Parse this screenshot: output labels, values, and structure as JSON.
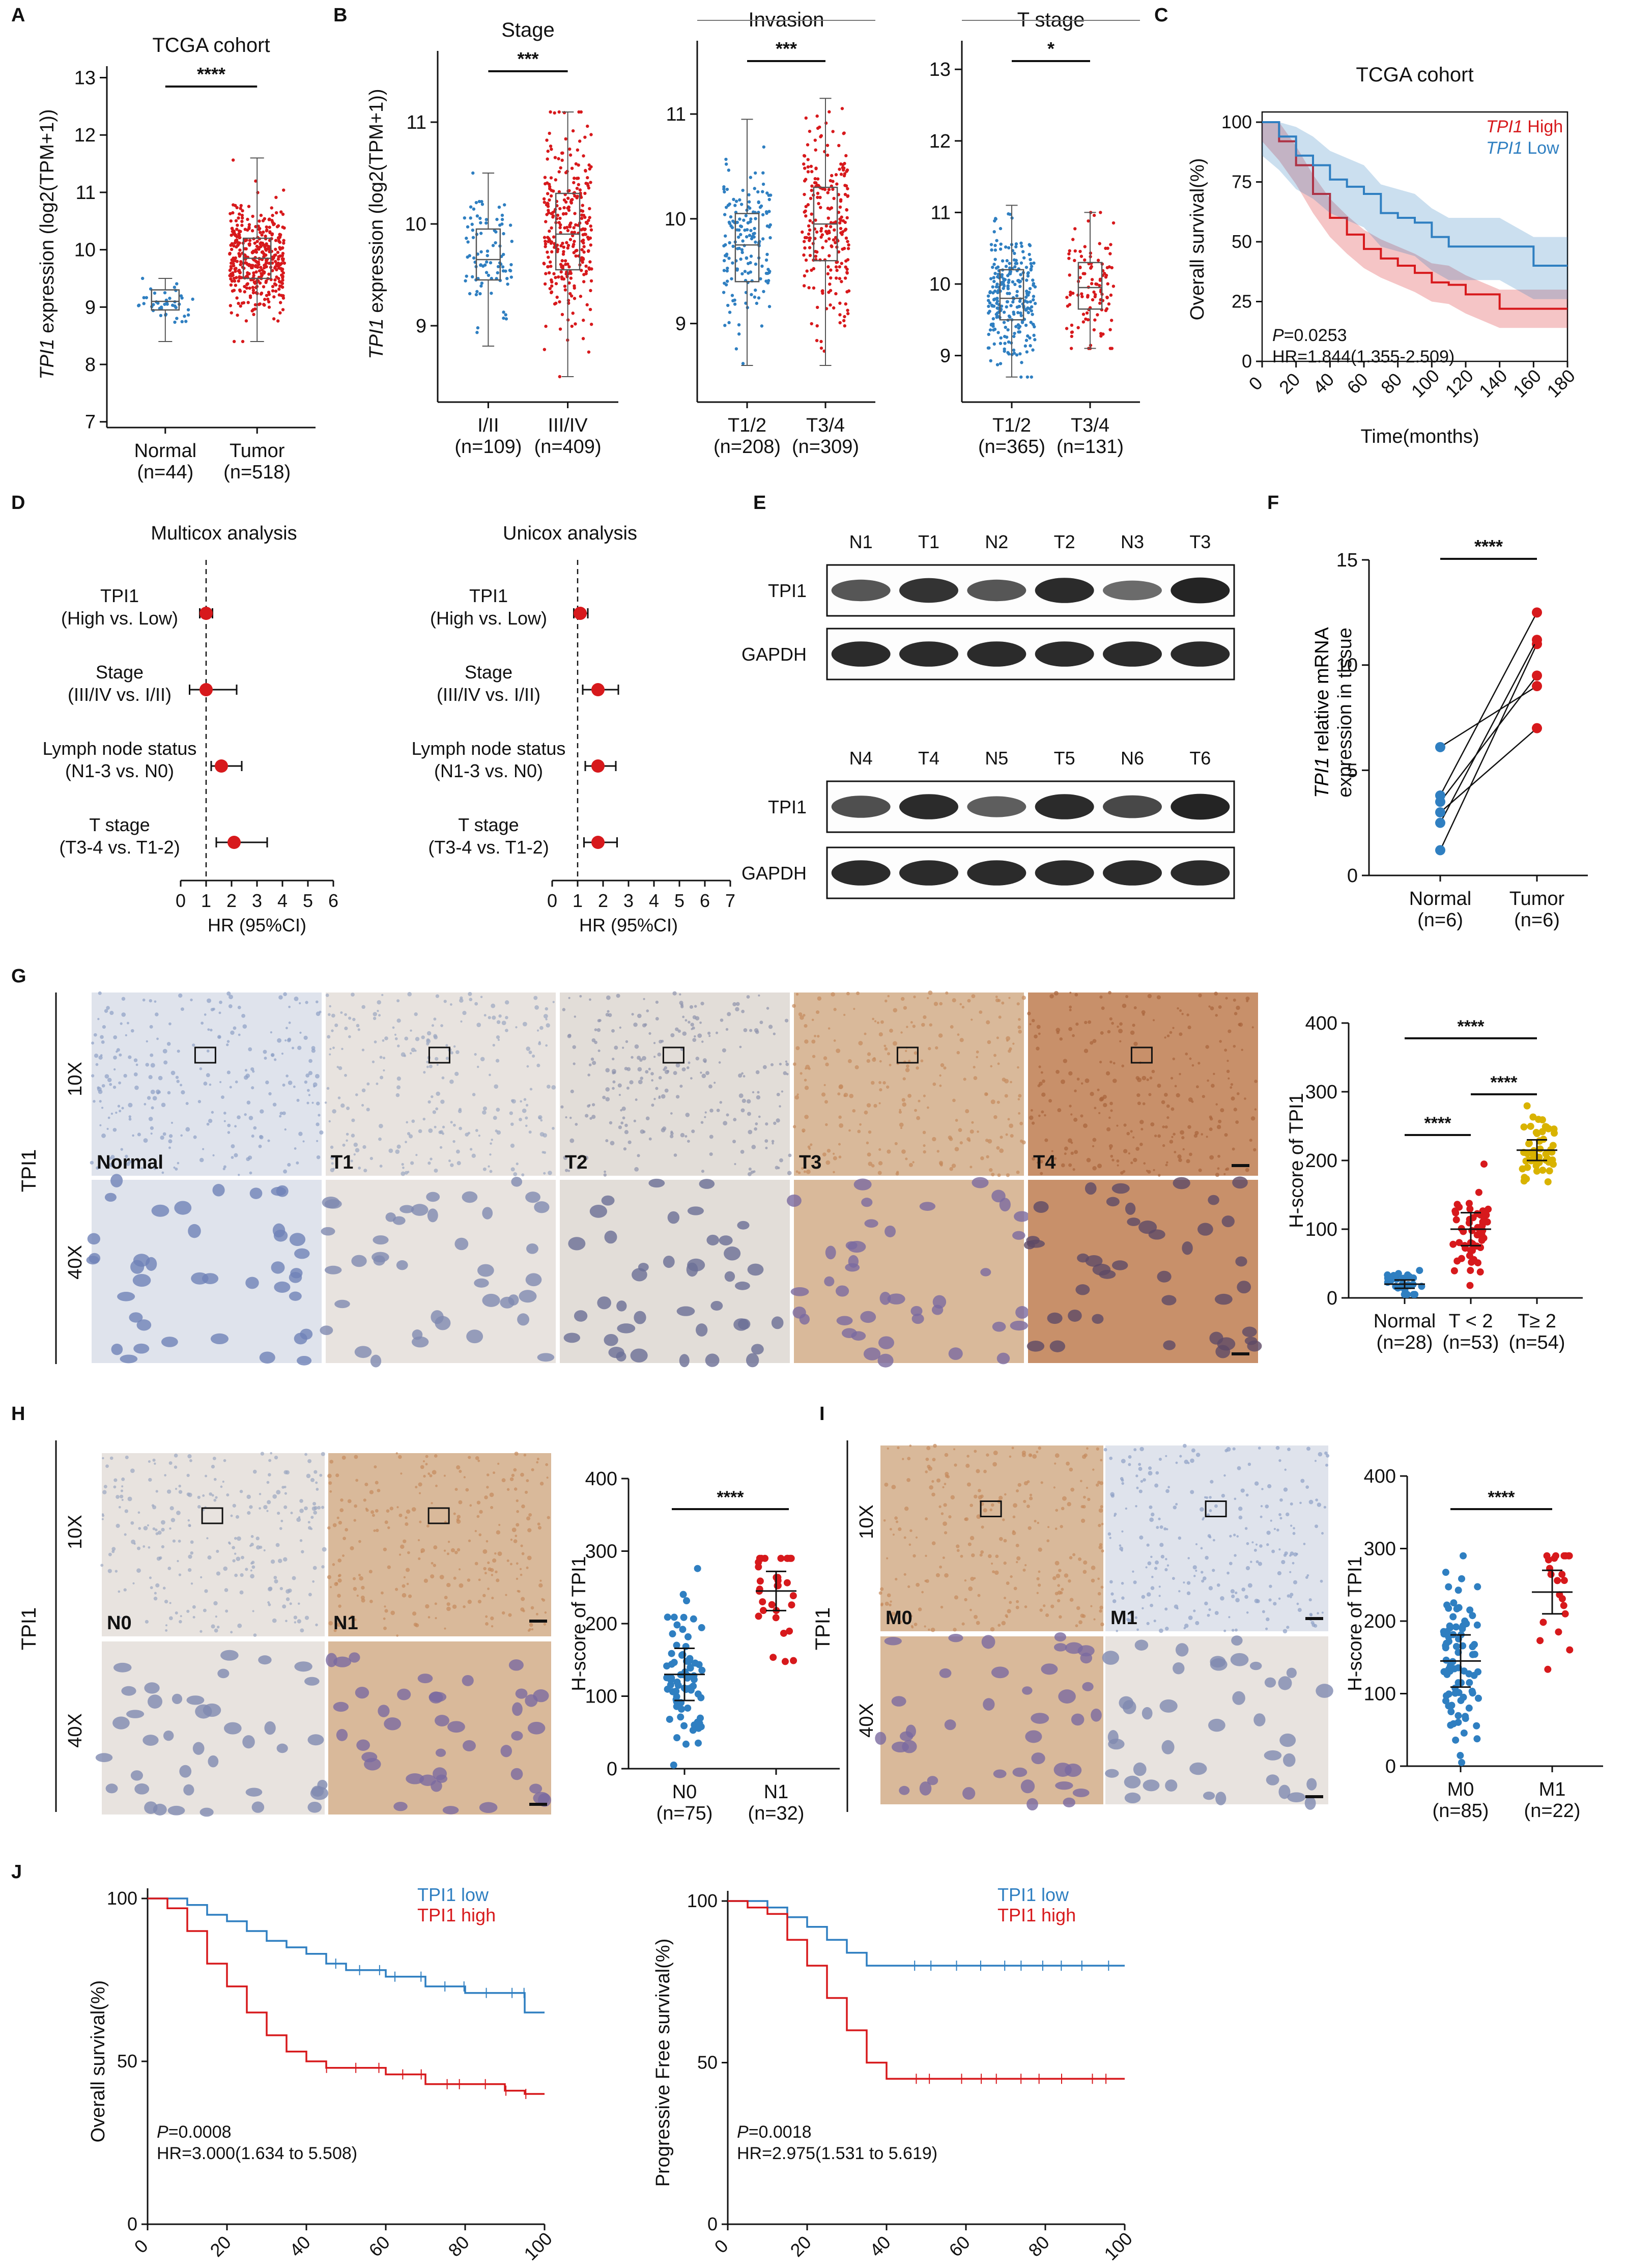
{
  "colors": {
    "red": "#d7191c",
    "blue": "#2f7fc1",
    "yellow": "#d9b300",
    "axis": "#111111"
  },
  "panels": {
    "A": {
      "letter": "A",
      "title": "TCGA cohort",
      "ylabel_italic": "TPI1",
      "ylabel_rest": " expression (log2(TPM+1))",
      "ticks": [
        "7",
        "8",
        "9",
        "10",
        "11",
        "12",
        "13"
      ],
      "groups": [
        {
          "name": "Normal",
          "n": "(n=44)"
        },
        {
          "name": "Tumor",
          "n": "(n=518)"
        }
      ],
      "sig": "****"
    },
    "B": {
      "letter": "B",
      "ylabel_italic": "TPI1",
      "ylabel_rest": " expression (log2(TPM+1))",
      "subplots": [
        {
          "title": "Stage",
          "groups": [
            {
              "name": "I/II",
              "n": "(n=109)"
            },
            {
              "name": "III/IV",
              "n": "(n=409)"
            }
          ],
          "sig": "***",
          "ticks": [
            "9",
            "10",
            "11"
          ]
        },
        {
          "title": "Invasion",
          "groups": [
            {
              "name": "T1/2",
              "n": "(n=208)"
            },
            {
              "name": "T3/4",
              "n": "(n=309)"
            }
          ],
          "sig": "***",
          "ticks": [
            "9",
            "10",
            "11"
          ]
        },
        {
          "title": "T stage",
          "groups": [
            {
              "name": "T1/2",
              "n": "(n=365)"
            },
            {
              "name": "T3/4",
              "n": "(n=131)"
            }
          ],
          "sig": "*",
          "ticks": [
            "9",
            "10",
            "11",
            "12",
            "13"
          ]
        }
      ]
    },
    "C": {
      "letter": "C",
      "title": "TCGA cohort",
      "ylabel": "Overall survival(%)",
      "xlabel": "Time(months)",
      "legend": [
        {
          "italic": "TPI1",
          "rest": " High",
          "color": "#d7191c"
        },
        {
          "italic": "TPI1",
          "rest": " Low",
          "color": "#2f7fc1"
        }
      ],
      "p_italic": "P",
      "p_rest": "=0.0253",
      "hr": "HR=1.844(1.355-2.509)",
      "xticks": [
        "0",
        "20",
        "40",
        "60",
        "80",
        "100",
        "120",
        "140",
        "160",
        "180"
      ],
      "yticks": [
        "0",
        "25",
        "50",
        "75",
        "100"
      ]
    },
    "D": {
      "letter": "D",
      "plots": [
        {
          "title": "Multicox analysis",
          "xticks": [
            "0",
            "1",
            "2",
            "3",
            "4",
            "5",
            "6"
          ],
          "hr": [
            1.0,
            1.0,
            1.6,
            2.1
          ],
          "lo": [
            0.75,
            0.35,
            1.2,
            1.4
          ],
          "hi": [
            1.25,
            2.2,
            2.4,
            3.4
          ]
        },
        {
          "title": "Unicox analysis",
          "xticks": [
            "0",
            "1",
            "2",
            "3",
            "4",
            "5",
            "6",
            "7"
          ],
          "hr": [
            1.1,
            1.8,
            1.8,
            1.8
          ],
          "lo": [
            0.85,
            1.2,
            1.3,
            1.25
          ],
          "hi": [
            1.4,
            2.6,
            2.5,
            2.55
          ]
        }
      ],
      "rows": [
        {
          "l1": "TPI1",
          "l2": "(High vs. Low)"
        },
        {
          "l1": "Stage",
          "l2": "(III/IV vs. I/II)"
        },
        {
          "l1": "Lymph node status",
          "l2": "(N1-3 vs. N0)"
        },
        {
          "l1": "T stage",
          "l2": "(T3-4 vs. T1-2)"
        }
      ],
      "xlabel": "HR (95%CI)"
    },
    "E": {
      "letter": "E",
      "blot1": {
        "heads": [
          "N1",
          "T1",
          "N2",
          "T2",
          "N3",
          "T3"
        ],
        "rows": [
          "TPI1",
          "GAPDH"
        ]
      },
      "blot2": {
        "heads": [
          "N4",
          "T4",
          "N5",
          "T5",
          "N6",
          "T6"
        ],
        "rows": [
          "TPI1",
          "GAPDH"
        ]
      }
    },
    "F": {
      "letter": "F",
      "ylabel_italic": "TPI1",
      "ylabel_rest": " relative mRNA",
      "ylabel2": "expression in tissue",
      "ticks": [
        "0",
        "5",
        "10",
        "15"
      ],
      "groups": [
        {
          "name": "Normal",
          "n": "(n=6)"
        },
        {
          "name": "Tumor",
          "n": "(n=6)"
        }
      ],
      "sig": "****"
    },
    "G": {
      "letter": "G",
      "side": "TPI1",
      "mag1": "10X",
      "mag2": "40X",
      "tiles": [
        "Normal",
        "T1",
        "T2",
        "T3",
        "T4"
      ],
      "ylabel": "H-score of TPI1",
      "ticks": [
        "0",
        "100",
        "200",
        "300",
        "400"
      ],
      "groups": [
        {
          "name": "Normal",
          "n": "(n=28)"
        },
        {
          "name": "T < 2",
          "n": "(n=53)"
        },
        {
          "name": "T≥ 2",
          "n": "(n=54)"
        }
      ],
      "sigs": [
        "****",
        "****",
        "****"
      ]
    },
    "H": {
      "letter": "H",
      "side": "TPI1",
      "mag1": "10X",
      "mag2": "40X",
      "tiles": [
        "N0",
        "N1"
      ],
      "ylabel": "H-score of TPI1",
      "ticks": [
        "0",
        "100",
        "200",
        "300",
        "400"
      ],
      "groups": [
        {
          "name": "N0",
          "n": "(n=75)"
        },
        {
          "name": "N1",
          "n": "(n=32)"
        }
      ],
      "sig": "****"
    },
    "I": {
      "letter": "I",
      "side": "TPI1",
      "mag1": "10X",
      "mag2": "40X",
      "tiles": [
        "M0",
        "M1"
      ],
      "ylabel": "H-score of TPI1",
      "ticks": [
        "0",
        "100",
        "200",
        "300",
        "400"
      ],
      "groups": [
        {
          "name": "M0",
          "n": "(n=85)"
        },
        {
          "name": "M1",
          "n": "(n=22)"
        }
      ],
      "sig": "****"
    },
    "J": {
      "letter": "J",
      "os": {
        "ylabel": "Overall survival(%)",
        "xlabel": "Time(months)",
        "p_italic": "P",
        "p_rest": "=0.0008",
        "hr": "HR=3.000(1.634 to 5.508)",
        "legend": [
          "TPI1 low",
          "TPI1 high"
        ],
        "xticks": [
          "0",
          "20",
          "40",
          "60",
          "80",
          "100"
        ],
        "yticks": [
          "0",
          "50",
          "100"
        ]
      },
      "pfs": {
        "ylabel": "Progressive Free  survival(%)",
        "xlabel": "Time(months)",
        "p_italic": "P",
        "p_rest": "=0.0018",
        "hr": "HR=2.975(1.531 to 5.619)",
        "legend": [
          "TPI1 low",
          "TPI1 high"
        ],
        "xticks": [
          "0",
          "20",
          "40",
          "60",
          "80",
          "100"
        ],
        "yticks": [
          "0",
          "50",
          "100"
        ]
      }
    }
  },
  "chart_data": [
    {
      "panel": "A",
      "type": "scatter",
      "title": "TCGA cohort",
      "ylabel": "TPI1 expression (log2(TPM+1))",
      "ylim": [
        7,
        13
      ],
      "categories": [
        "Normal",
        "Tumor"
      ],
      "series": [
        {
          "name": "Normal",
          "median": 9.1,
          "q1": 8.95,
          "q3": 9.3,
          "min": 8.4,
          "max": 9.5
        },
        {
          "name": "Tumor",
          "median": 9.85,
          "q1": 9.5,
          "q3": 10.2,
          "min": 8.4,
          "max": 11.6
        }
      ]
    },
    {
      "panel": "B-Stage",
      "type": "scatter",
      "title": "Stage",
      "ylim": [
        8.3,
        11.7
      ],
      "categories": [
        "I/II",
        "III/IV"
      ],
      "series": [
        {
          "name": "I/II",
          "median": 9.65,
          "q1": 9.45,
          "q3": 9.95,
          "min": 8.8,
          "max": 10.5
        },
        {
          "name": "III/IV",
          "median": 9.9,
          "q1": 9.55,
          "q3": 10.3,
          "min": 8.5,
          "max": 11.1
        }
      ]
    },
    {
      "panel": "B-Invasion",
      "type": "scatter",
      "title": "Invasion",
      "ylim": [
        8.3,
        11.7
      ],
      "categories": [
        "T1/2",
        "T3/4"
      ],
      "series": [
        {
          "name": "T1/2",
          "median": 9.75,
          "q1": 9.4,
          "q3": 10.05,
          "min": 8.6,
          "max": 10.95
        },
        {
          "name": "T3/4",
          "median": 9.95,
          "q1": 9.6,
          "q3": 10.3,
          "min": 8.6,
          "max": 11.15
        }
      ]
    },
    {
      "panel": "B-T stage",
      "type": "scatter",
      "title": "T stage",
      "ylim": [
        8.3,
        13.3
      ],
      "categories": [
        "T1/2",
        "T3/4"
      ],
      "series": [
        {
          "name": "T1/2",
          "median": 9.8,
          "q1": 9.5,
          "q3": 10.2,
          "min": 8.7,
          "max": 11.1
        },
        {
          "name": "T3/4",
          "median": 9.95,
          "q1": 9.65,
          "q3": 10.3,
          "min": 9.1,
          "max": 11.0
        }
      ]
    },
    {
      "panel": "C",
      "type": "line",
      "title": "TCGA cohort",
      "xlabel": "Time(months)",
      "ylabel": "Overall survival(%)",
      "xlim": [
        0,
        180
      ],
      "ylim": [
        0,
        100
      ],
      "series": [
        {
          "name": "TPI1 High",
          "x": [
            0,
            10,
            20,
            30,
            40,
            50,
            60,
            70,
            80,
            90,
            100,
            110,
            120,
            140,
            160,
            180
          ],
          "y": [
            100,
            92,
            82,
            70,
            60,
            53,
            47,
            43,
            40,
            37,
            33,
            32,
            28,
            22,
            22,
            22
          ]
        },
        {
          "name": "TPI1 Low",
          "x": [
            0,
            10,
            20,
            30,
            40,
            50,
            60,
            70,
            80,
            90,
            100,
            110,
            120,
            140,
            160,
            180
          ],
          "y": [
            100,
            94,
            86,
            82,
            76,
            73,
            70,
            62,
            60,
            58,
            52,
            48,
            48,
            48,
            40,
            40
          ]
        }
      ]
    },
    {
      "panel": "D",
      "type": "scatter",
      "subplots": [
        "Multicox analysis",
        "Unicox analysis"
      ],
      "categories": [
        "TPI1 (High vs. Low)",
        "Stage (III/IV vs. I/II)",
        "Lymph node status (N1-3 vs. N0)",
        "T stage (T3-4 vs. T1-2)"
      ],
      "series": [
        {
          "name": "Multicox analysis",
          "values": [
            1.0,
            1.0,
            1.6,
            2.1
          ]
        },
        {
          "name": "Unicox analysis",
          "values": [
            1.1,
            1.8,
            1.8,
            1.8
          ]
        }
      ]
    },
    {
      "panel": "F",
      "type": "line",
      "ylim": [
        0,
        15
      ],
      "categories": [
        "Normal",
        "Tumor"
      ],
      "series": [
        {
          "values": [
            1.2,
            11.0
          ]
        },
        {
          "values": [
            2.5,
            11.2
          ]
        },
        {
          "values": [
            3.5,
            9.5
          ]
        },
        {
          "values": [
            3.8,
            12.5
          ]
        },
        {
          "values": [
            6.1,
            9.0
          ]
        },
        {
          "values": [
            3.0,
            7.0
          ]
        }
      ]
    },
    {
      "panel": "G",
      "type": "scatter",
      "ylabel": "H-score of TPI1",
      "ylim": [
        0,
        400
      ],
      "categories": [
        "Normal",
        "T < 2",
        "T≥ 2"
      ],
      "series": [
        {
          "name": "Normal",
          "mean": 20,
          "sd": 10
        },
        {
          "name": "T < 2",
          "mean": 100,
          "sd": 40
        },
        {
          "name": "T≥ 2",
          "mean": 215,
          "sd": 25
        }
      ]
    },
    {
      "panel": "H",
      "type": "scatter",
      "ylabel": "H-score of TPI1",
      "ylim": [
        0,
        400
      ],
      "categories": [
        "N0",
        "N1"
      ],
      "series": [
        {
          "name": "N0",
          "mean": 130,
          "sd": 60
        },
        {
          "name": "N1",
          "mean": 245,
          "sd": 45
        }
      ]
    },
    {
      "panel": "I",
      "type": "scatter",
      "ylabel": "H-score of TPI1",
      "ylim": [
        0,
        400
      ],
      "categories": [
        "M0",
        "M1"
      ],
      "series": [
        {
          "name": "M0",
          "mean": 145,
          "sd": 60
        },
        {
          "name": "M1",
          "mean": 240,
          "sd": 50
        }
      ]
    },
    {
      "panel": "J-OS",
      "type": "line",
      "xlabel": "Time(months)",
      "ylabel": "Overall survival(%)",
      "xlim": [
        0,
        100
      ],
      "ylim": [
        0,
        100
      ],
      "series": [
        {
          "name": "TPI1 low",
          "x": [
            0,
            5,
            10,
            15,
            20,
            25,
            30,
            35,
            40,
            45,
            50,
            60,
            70,
            80,
            90,
            95,
            100
          ],
          "y": [
            100,
            100,
            98,
            95,
            93,
            90,
            87,
            85,
            83,
            80,
            78,
            76,
            73,
            71,
            71,
            65,
            65
          ]
        },
        {
          "name": "TPI1 high",
          "x": [
            0,
            5,
            10,
            15,
            20,
            25,
            30,
            35,
            40,
            45,
            50,
            60,
            70,
            80,
            90,
            95,
            100
          ],
          "y": [
            100,
            97,
            90,
            80,
            73,
            65,
            58,
            53,
            50,
            48,
            48,
            46,
            43,
            43,
            41,
            40,
            40
          ]
        }
      ]
    },
    {
      "panel": "J-PFS",
      "type": "line",
      "xlabel": "Time(months)",
      "ylabel": "Progressive Free  survival(%)",
      "xlim": [
        0,
        100
      ],
      "ylim": [
        0,
        100
      ],
      "series": [
        {
          "name": "TPI1 low",
          "x": [
            0,
            5,
            10,
            15,
            20,
            25,
            30,
            35,
            40,
            50,
            60,
            70,
            80,
            90,
            100
          ],
          "y": [
            100,
            100,
            98,
            95,
            92,
            88,
            84,
            80,
            80,
            80,
            80,
            80,
            80,
            80,
            80
          ]
        },
        {
          "name": "TPI1 high",
          "x": [
            0,
            5,
            10,
            15,
            20,
            25,
            30,
            35,
            40,
            50,
            60,
            70,
            80,
            90,
            100
          ],
          "y": [
            100,
            98,
            96,
            88,
            80,
            70,
            60,
            50,
            45,
            45,
            45,
            45,
            45,
            45,
            45
          ]
        }
      ]
    }
  ]
}
